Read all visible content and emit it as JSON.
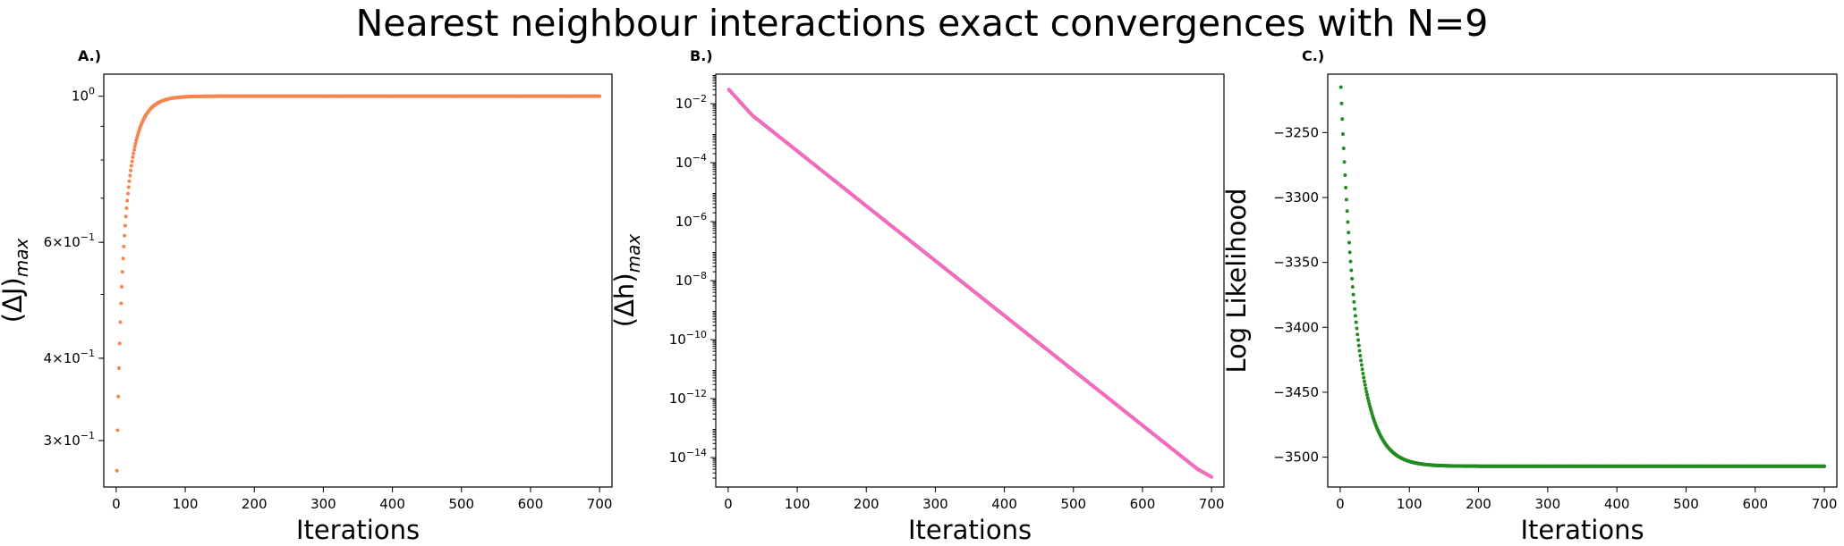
{
  "figure": {
    "title": "Nearest neighbour interactions exact convergences with N=9"
  },
  "chart_data": [
    {
      "type": "scatter",
      "panel_label": "A.)",
      "xlabel": "Iterations",
      "ylabel": "(ΔJ)_max",
      "yscale": "log",
      "xlim": [
        -18,
        718
      ],
      "ylim": [
        0.255,
        1.08
      ],
      "color": "#f5844f",
      "xticks": [
        0,
        100,
        200,
        300,
        400,
        500,
        600,
        700
      ],
      "yticks": [
        {
          "value": 1.0,
          "label": "10^0"
        },
        {
          "value": 0.6,
          "label": "6×10^-1"
        },
        {
          "value": 0.4,
          "label": "4×10^-1"
        },
        {
          "value": 0.3,
          "label": "3×10^-1"
        }
      ],
      "series": [
        {
          "model": "saturating",
          "x_start": 1,
          "x_end": 700,
          "y_start": 0.27,
          "y_end": 1.0,
          "decay_rate": 0.058
        }
      ]
    },
    {
      "type": "scatter",
      "panel_label": "B.)",
      "xlabel": "Iterations",
      "ylabel": "(Δh)_max",
      "yscale": "log",
      "xlim": [
        -18,
        718
      ],
      "ylim": [
        1e-15,
        0.1
      ],
      "color": "#f06cbc",
      "xticks": [
        0,
        100,
        200,
        300,
        400,
        500,
        600,
        700
      ],
      "yticks": [
        {
          "value": 0.01,
          "label": "10^-2"
        },
        {
          "value": 0.0001,
          "label": "10^-4"
        },
        {
          "value": 1e-06,
          "label": "10^-6"
        },
        {
          "value": 1e-08,
          "label": "10^-8"
        },
        {
          "value": 1e-10,
          "label": "10^-10"
        },
        {
          "value": 1e-12,
          "label": "10^-12"
        },
        {
          "value": 1e-14,
          "label": "10^-14"
        }
      ],
      "series": [
        {
          "model": "piecewise-log",
          "points": [
            [
              1,
              0.03
            ],
            [
              35,
              0.004
            ],
            [
              680,
              4e-15
            ],
            [
              700,
              2.2e-15
            ]
          ]
        }
      ]
    },
    {
      "type": "scatter",
      "panel_label": "C.)",
      "xlabel": "Iterations",
      "ylabel": "Log Likelihood",
      "yscale": "linear",
      "xlim": [
        -18,
        718
      ],
      "ylim": [
        -3523,
        -3205
      ],
      "color": "#228b22",
      "xticks": [
        0,
        100,
        200,
        300,
        400,
        500,
        600,
        700
      ],
      "yticks": [
        {
          "value": -3250,
          "label": "−3250"
        },
        {
          "value": -3300,
          "label": "−3300"
        },
        {
          "value": -3350,
          "label": "−3350"
        },
        {
          "value": -3400,
          "label": "−3400"
        },
        {
          "value": -3450,
          "label": "−3450"
        },
        {
          "value": -3500,
          "label": "−3500"
        }
      ],
      "series": [
        {
          "model": "decaying",
          "x_start": 1,
          "x_end": 700,
          "y_start": -3215,
          "y_end": -3507,
          "decay_rate": 0.044
        }
      ]
    }
  ]
}
